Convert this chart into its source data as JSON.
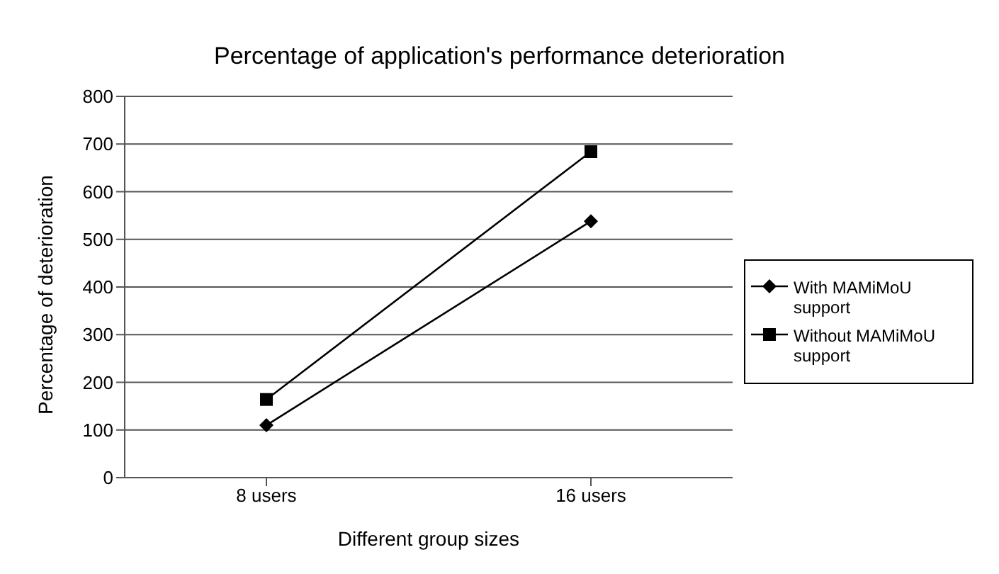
{
  "chart_data": {
    "type": "line",
    "title": "Percentage of application's performance deterioration",
    "xlabel": "Different group sizes",
    "ylabel": "Percentage of deterioration",
    "categories": [
      "8 users",
      "16 users"
    ],
    "series": [
      {
        "name": "With MAMiMoU support",
        "color": "#000000",
        "values": [
          110,
          538
        ],
        "marker": "diamond"
      },
      {
        "name": "Without MAMiMoU support",
        "color": "#000000",
        "values": [
          164,
          684
        ],
        "marker": "square"
      }
    ],
    "ylim": [
      0,
      800
    ],
    "yticks": [
      0,
      100,
      200,
      300,
      400,
      500,
      600,
      700,
      800
    ],
    "grid": "y",
    "legend": "right"
  }
}
